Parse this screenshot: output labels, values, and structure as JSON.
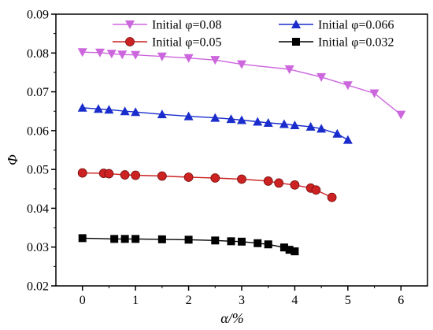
{
  "chart_data": {
    "type": "line",
    "xlabel": "α/%",
    "ylabel": "Φ",
    "xlim": [
      -0.5,
      6.5
    ],
    "ylim": [
      0.02,
      0.09
    ],
    "x_ticks": [
      0,
      1,
      2,
      3,
      4,
      5,
      6
    ],
    "x_tick_labels": [
      "0",
      "1",
      "2",
      "3",
      "4",
      "5",
      "6"
    ],
    "y_ticks": [
      0.02,
      0.03,
      0.04,
      0.05,
      0.06,
      0.07,
      0.08,
      0.09
    ],
    "y_tick_labels": [
      "0.02",
      "0.03",
      "0.04",
      "0.05",
      "0.06",
      "0.07",
      "0.08",
      "0.09"
    ],
    "grid": false,
    "legend_position": "top",
    "series": [
      {
        "name": "Initial φ=0.08",
        "marker": "triangle-down",
        "color": "#CC66DD",
        "x": [
          0,
          0.33,
          0.55,
          0.75,
          1.0,
          1.5,
          2.0,
          2.5,
          3.0,
          3.9,
          4.5,
          5.0,
          5.5,
          6.0
        ],
        "y": [
          0.0802,
          0.0801,
          0.0798,
          0.0796,
          0.0795,
          0.0791,
          0.0787,
          0.0782,
          0.0771,
          0.0758,
          0.0738,
          0.0717,
          0.0696,
          0.0641
        ]
      },
      {
        "name": "Initial φ=0.066",
        "marker": "triangle-up",
        "color": "#1A2DCC",
        "x": [
          0,
          0.3,
          0.5,
          0.8,
          1.0,
          1.5,
          2.0,
          2.5,
          2.8,
          3.0,
          3.3,
          3.5,
          3.8,
          4.0,
          4.3,
          4.5,
          4.8,
          5.0
        ],
        "y": [
          0.0659,
          0.0656,
          0.0654,
          0.065,
          0.0648,
          0.0642,
          0.0637,
          0.0633,
          0.063,
          0.0627,
          0.0623,
          0.062,
          0.0617,
          0.0614,
          0.061,
          0.0605,
          0.0592,
          0.0576
        ]
      },
      {
        "name": "Initial φ=0.05",
        "marker": "circle",
        "color": "#CC2222",
        "x": [
          0,
          0.4,
          0.5,
          0.8,
          1.0,
          1.5,
          2.0,
          2.5,
          3.0,
          3.5,
          3.7,
          4.0,
          4.3,
          4.4,
          4.7
        ],
        "y": [
          0.0491,
          0.049,
          0.0489,
          0.0486,
          0.0485,
          0.0483,
          0.048,
          0.0478,
          0.0475,
          0.047,
          0.0465,
          0.046,
          0.0452,
          0.0447,
          0.0428
        ]
      },
      {
        "name": "Initial φ=0.032",
        "marker": "square",
        "color": "#000000",
        "x": [
          0,
          0.6,
          0.8,
          1.0,
          1.5,
          2.0,
          2.5,
          2.8,
          3.0,
          3.3,
          3.5,
          3.8,
          3.9,
          4.0
        ],
        "y": [
          0.0323,
          0.0321,
          0.0321,
          0.0321,
          0.032,
          0.0319,
          0.0317,
          0.0315,
          0.0314,
          0.031,
          0.0307,
          0.0299,
          0.0293,
          0.0289
        ]
      }
    ]
  }
}
